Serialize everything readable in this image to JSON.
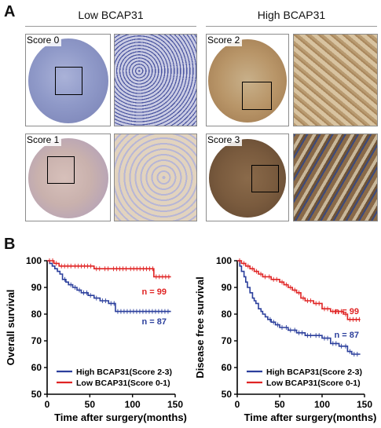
{
  "panel_a": {
    "letter": "A",
    "groups": [
      {
        "title": "Low BCAP31"
      },
      {
        "title": "High BCAP31"
      }
    ],
    "tiles": [
      {
        "label": "Score 0",
        "stain": "blue"
      },
      {
        "label": "Score 1",
        "stain": "light-brown"
      },
      {
        "label": "Score 2",
        "stain": "brown"
      },
      {
        "label": "Score 3",
        "stain": "dark-brown"
      }
    ]
  },
  "panel_b": {
    "letter": "B"
  },
  "colors": {
    "high": "#2b3f9c",
    "low": "#e02424",
    "blue_stain": "#8a93c4",
    "brown_stain": "#a07a55"
  },
  "chart_data": [
    {
      "type": "line",
      "subtype": "kaplan-meier",
      "xlabel": "Time after surgery(months)",
      "ylabel": "Overall survival",
      "xlim": [
        0,
        150
      ],
      "ylim": [
        50,
        100
      ],
      "xticks": [
        0,
        50,
        100,
        150
      ],
      "yticks": [
        50,
        60,
        70,
        80,
        90,
        100
      ],
      "legend_position": "bottom-left",
      "series": [
        {
          "name": "High BCAP31(Score 2-3)",
          "color": "#2b3f9c",
          "n_label": "n = 87",
          "x": [
            0,
            3,
            6,
            9,
            12,
            15,
            18,
            22,
            25,
            30,
            35,
            40,
            48,
            55,
            62,
            72,
            80,
            145
          ],
          "y": [
            100,
            99,
            98,
            97,
            96,
            95,
            93,
            92,
            91,
            90,
            89,
            88,
            87,
            86,
            85,
            84,
            81,
            81
          ]
        },
        {
          "name": "Low BCAP31(Score 0-1)",
          "color": "#e02424",
          "n_label": "n = 99",
          "x": [
            0,
            8,
            14,
            30,
            55,
            65,
            75,
            95,
            110,
            125,
            145
          ],
          "y": [
            100,
            99,
            98,
            98,
            97,
            97,
            97,
            97,
            97,
            94,
            94
          ]
        }
      ]
    },
    {
      "type": "line",
      "subtype": "kaplan-meier",
      "xlabel": "Time after surgery(months)",
      "ylabel": "Disease free survival",
      "xlim": [
        0,
        150
      ],
      "ylim": [
        50,
        100
      ],
      "xticks": [
        0,
        50,
        100,
        150
      ],
      "yticks": [
        50,
        60,
        70,
        80,
        90,
        100
      ],
      "legend_position": "bottom-left",
      "series": [
        {
          "name": "High BCAP31(Score 2-3)",
          "color": "#2b3f9c",
          "n_label": "n = 87",
          "x": [
            0,
            3,
            5,
            8,
            10,
            12,
            15,
            18,
            20,
            22,
            25,
            28,
            30,
            33,
            36,
            40,
            45,
            50,
            55,
            60,
            65,
            70,
            80,
            90,
            100,
            110,
            120,
            125,
            130,
            135,
            145
          ],
          "y": [
            100,
            98,
            96,
            94,
            92,
            90,
            88,
            86,
            85,
            84,
            82,
            81,
            80,
            79,
            78,
            77,
            76,
            75,
            75,
            74,
            74,
            73,
            72,
            72,
            71,
            69,
            68,
            68,
            66,
            65,
            65
          ]
        },
        {
          "name": "Low BCAP31(Score 0-1)",
          "color": "#e02424",
          "n_label": "n = 99",
          "x": [
            0,
            5,
            10,
            15,
            20,
            25,
            30,
            35,
            40,
            50,
            55,
            60,
            65,
            70,
            75,
            80,
            90,
            100,
            110,
            120,
            125,
            130,
            145
          ],
          "y": [
            100,
            99,
            98,
            97,
            96,
            95,
            94,
            94,
            93,
            92,
            91,
            90,
            89,
            88,
            86,
            85,
            84,
            82,
            81,
            81,
            80,
            78,
            78
          ]
        }
      ]
    }
  ]
}
